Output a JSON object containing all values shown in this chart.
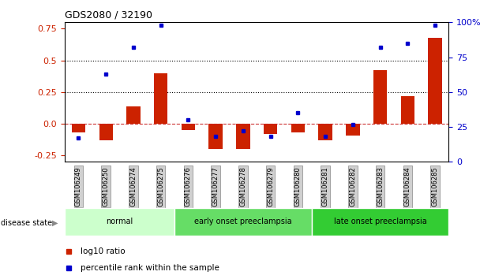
{
  "title": "GDS2080 / 32190",
  "samples": [
    "GSM106249",
    "GSM106250",
    "GSM106274",
    "GSM106275",
    "GSM106276",
    "GSM106277",
    "GSM106278",
    "GSM106279",
    "GSM106280",
    "GSM106281",
    "GSM106282",
    "GSM106283",
    "GSM106284",
    "GSM106285"
  ],
  "log10_ratio": [
    -0.07,
    -0.13,
    0.14,
    0.4,
    -0.05,
    -0.2,
    -0.2,
    -0.08,
    -0.065,
    -0.13,
    -0.09,
    0.42,
    0.22,
    0.68
  ],
  "percentile_rank": [
    17,
    63,
    82,
    98,
    30,
    18,
    22,
    18,
    35,
    18,
    27,
    82,
    85,
    98
  ],
  "groups": [
    {
      "label": "normal",
      "start": 0,
      "end": 4,
      "color": "#ccffcc"
    },
    {
      "label": "early onset preeclampsia",
      "start": 4,
      "end": 9,
      "color": "#66dd66"
    },
    {
      "label": "late onset preeclampsia",
      "start": 9,
      "end": 14,
      "color": "#33cc33"
    }
  ],
  "ylim_left": [
    -0.3,
    0.8
  ],
  "ylim_right": [
    0,
    100
  ],
  "yticks_left": [
    -0.25,
    0.0,
    0.25,
    0.5,
    0.75
  ],
  "yticks_right": [
    0,
    25,
    50,
    75,
    100
  ],
  "hlines": [
    0.25,
    0.5
  ],
  "bar_color": "#cc2200",
  "dot_color": "#0000cc",
  "zero_line_color": "#cc3333",
  "background_color": "#ffffff",
  "legend_log10": "log10 ratio",
  "legend_pct": "percentile rank within the sample"
}
